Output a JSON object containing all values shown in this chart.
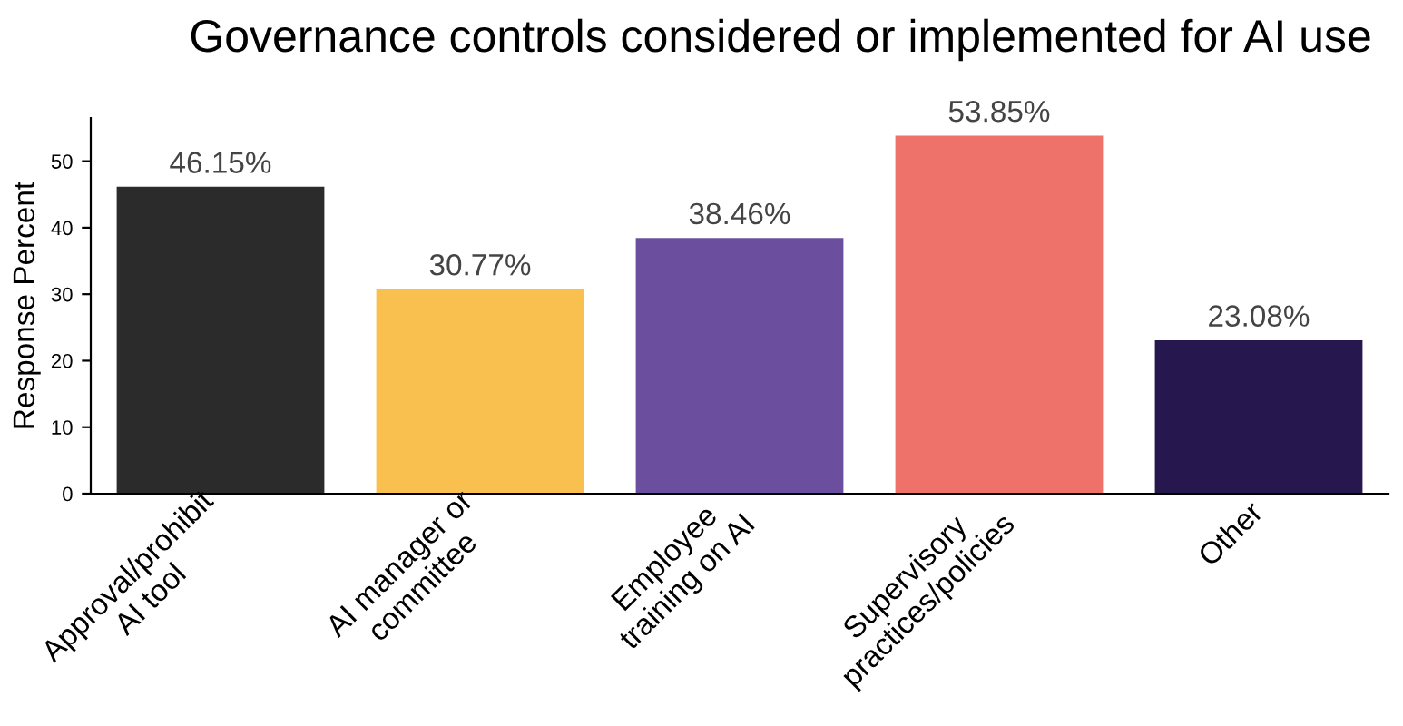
{
  "chart_data": {
    "type": "bar",
    "title": "Governance controls considered or implemented for AI use",
    "ylabel": "Response Percent",
    "categories": [
      "Approval/prohibit\nAI tool",
      "AI manager or\ncommittee",
      "Employee\ntraining on AI",
      "Supervisory\npractices/policies",
      "Other"
    ],
    "values": [
      46.15,
      30.77,
      38.46,
      53.85,
      23.08
    ],
    "colors": [
      "#2b2b2b",
      "#f9c04f",
      "#6b4f9e",
      "#ee7269",
      "#27174f"
    ],
    "value_labels": [
      "46.15%",
      "30.77%",
      "38.46%",
      "53.85%",
      "23.08%"
    ],
    "ylim": [
      0,
      56.5
    ],
    "yticks": [
      0,
      10,
      20,
      30,
      40,
      50
    ],
    "grid": false,
    "legend": false
  }
}
